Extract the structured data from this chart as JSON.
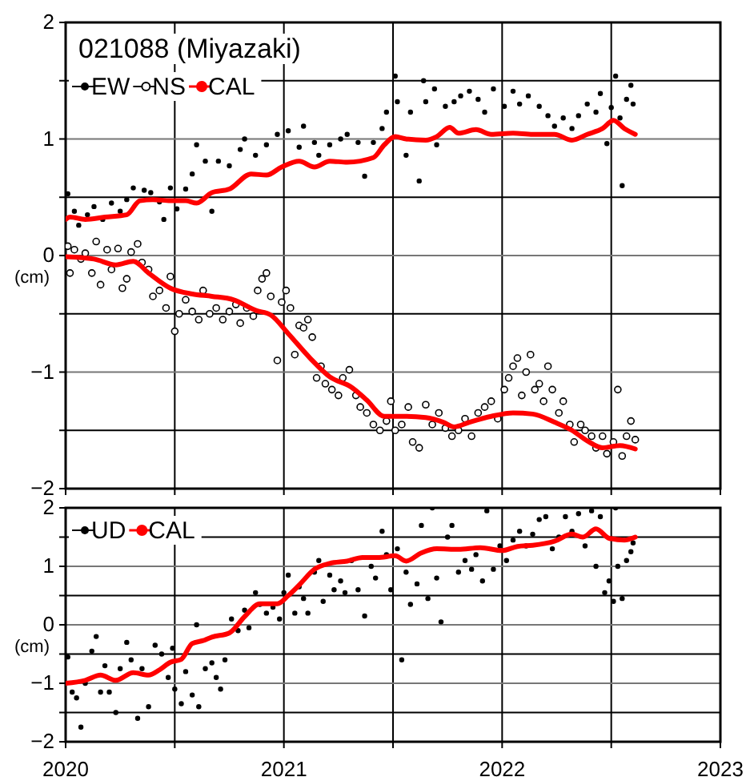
{
  "chart_data": [
    {
      "type": "scatter",
      "title": "021088 (Miyazaki)",
      "ylabel": "(cm)",
      "xlim": [
        2020,
        2023
      ],
      "xticks": [
        {
          "value": 2020,
          "label": null
        },
        {
          "value": 2020.5,
          "label": null
        },
        {
          "value": 2021,
          "label": null
        },
        {
          "value": 2021.5,
          "label": null
        },
        {
          "value": 2022,
          "label": null
        },
        {
          "value": 2022.5,
          "label": null
        },
        {
          "value": 2023,
          "label": null
        }
      ],
      "ylim": [
        -2,
        2
      ],
      "yticks": [
        -2,
        {
          "value": -1.5,
          "label": null
        },
        -1,
        {
          "value": -0.5,
          "label": null
        },
        0,
        {
          "value": 0.5,
          "label": null
        },
        1,
        {
          "value": 1.5,
          "label": null
        },
        2
      ],
      "tick_labels": "y",
      "grid": true,
      "legend": "top left",
      "marker": "circle",
      "series": [
        {
          "name": "EW",
          "color": "#000000",
          "x": [
            2020.01,
            2020.04,
            2020.06,
            2020.1,
            2020.13,
            2020.17,
            2020.21,
            2020.25,
            2020.28,
            2020.31,
            2020.36,
            2020.39,
            2020.43,
            2020.45,
            2020.48,
            2020.51,
            2020.55,
            2020.58,
            2020.6,
            2020.64,
            2020.67,
            2020.7,
            2020.75,
            2020.8,
            2020.82,
            2020.87,
            2020.92,
            2020.97,
            2021.02,
            2021.07,
            2021.09,
            2021.14,
            2021.16,
            2021.21,
            2021.26,
            2021.29,
            2021.34,
            2021.37,
            2021.41,
            2021.45,
            2021.47,
            2021.51,
            2021.52,
            2021.56,
            2021.58,
            2021.62,
            2021.64,
            2021.65,
            2021.69,
            2021.7,
            2021.74,
            2021.78,
            2021.81,
            2021.85,
            2021.89,
            2021.92,
            2021.96,
            2022.01,
            2022.05,
            2022.08,
            2022.12,
            2022.17,
            2022.21,
            2022.24,
            2022.28,
            2022.32,
            2022.35,
            2022.39,
            2022.43,
            2022.45,
            2022.48,
            2022.5,
            2022.52,
            2022.54,
            2022.55,
            2022.57,
            2022.59,
            2022.6
          ],
          "values": [
            0.53,
            0.38,
            0.26,
            0.35,
            0.42,
            0.31,
            0.45,
            0.38,
            0.48,
            0.58,
            0.56,
            0.54,
            0.46,
            0.31,
            0.58,
            0.4,
            0.57,
            0.7,
            0.95,
            0.81,
            0.38,
            0.81,
            0.77,
            0.91,
            1.0,
            0.86,
            0.95,
            1.04,
            1.07,
            0.93,
            1.11,
            0.97,
            0.86,
            0.95,
            1.0,
            1.04,
            0.97,
            0.68,
            0.97,
            1.09,
            1.23,
            1.54,
            1.32,
            0.86,
            1.23,
            0.64,
            1.5,
            1.32,
            1.43,
            0.95,
            1.28,
            1.32,
            1.37,
            1.41,
            1.34,
            1.23,
            1.43,
            1.28,
            1.41,
            1.3,
            1.37,
            1.28,
            1.2,
            1.11,
            1.18,
            1.09,
            1.2,
            1.3,
            1.23,
            1.39,
            0.96,
            1.27,
            1.54,
            1.18,
            0.6,
            1.34,
            1.46,
            1.3
          ]
        },
        {
          "name": "NS",
          "color": "#000000",
          "x": [
            2020.01,
            2020.02,
            2020.04,
            2020.07,
            2020.09,
            2020.12,
            2020.14,
            2020.16,
            2020.19,
            2020.21,
            2020.24,
            2020.26,
            2020.28,
            2020.3,
            2020.33,
            2020.35,
            2020.38,
            2020.4,
            2020.43,
            2020.46,
            2020.48,
            2020.5,
            2020.52,
            2020.55,
            2020.58,
            2020.61,
            2020.63,
            2020.66,
            2020.69,
            2020.72,
            2020.75,
            2020.78,
            2020.8,
            2020.83,
            2020.86,
            2020.88,
            2020.9,
            2020.92,
            2020.94,
            2020.97,
            2020.99,
            2021.01,
            2021.03,
            2021.05,
            2021.07,
            2021.09,
            2021.11,
            2021.13,
            2021.15,
            2021.17,
            2021.19,
            2021.22,
            2021.25,
            2021.27,
            2021.3,
            2021.33,
            2021.35,
            2021.38,
            2021.41,
            2021.44,
            2021.47,
            2021.49,
            2021.51,
            2021.54,
            2021.57,
            2021.59,
            2021.62,
            2021.65,
            2021.68,
            2021.71,
            2021.74,
            2021.77,
            2021.8,
            2021.83,
            2021.86,
            2021.89,
            2021.92,
            2021.95,
            2021.98,
            2022.01,
            2022.03,
            2022.05,
            2022.07,
            2022.09,
            2022.11,
            2022.13,
            2022.15,
            2022.17,
            2022.19,
            2022.21,
            2022.23,
            2022.26,
            2022.28,
            2022.31,
            2022.33,
            2022.36,
            2022.38,
            2022.41,
            2022.43,
            2022.46,
            2022.48,
            2022.51,
            2022.53,
            2022.55,
            2022.57,
            2022.59,
            2022.61
          ],
          "values": [
            0.08,
            -0.15,
            0.05,
            -0.03,
            0.02,
            -0.15,
            0.12,
            -0.25,
            0.05,
            -0.12,
            0.06,
            -0.28,
            -0.2,
            0.03,
            0.1,
            -0.06,
            -0.12,
            -0.35,
            -0.3,
            -0.45,
            -0.18,
            -0.65,
            -0.5,
            -0.38,
            -0.48,
            -0.55,
            -0.3,
            -0.5,
            -0.45,
            -0.55,
            -0.48,
            -0.42,
            -0.58,
            -0.45,
            -0.52,
            -0.3,
            -0.2,
            -0.15,
            -0.35,
            -0.9,
            -0.4,
            -0.3,
            -0.45,
            -0.85,
            -0.6,
            -0.62,
            -0.55,
            -0.7,
            -1.05,
            -0.95,
            -1.1,
            -1.15,
            -1.2,
            -1.05,
            -0.98,
            -1.2,
            -1.3,
            -1.35,
            -1.45,
            -1.5,
            -1.42,
            -1.25,
            -1.5,
            -1.45,
            -1.3,
            -1.6,
            -1.65,
            -1.28,
            -1.45,
            -1.35,
            -1.48,
            -1.55,
            -1.5,
            -1.4,
            -1.55,
            -1.35,
            -1.3,
            -1.25,
            -1.4,
            -1.15,
            -1.05,
            -0.95,
            -0.88,
            -1.2,
            -1.0,
            -0.85,
            -1.15,
            -1.1,
            -1.25,
            -0.95,
            -1.15,
            -1.35,
            -1.25,
            -1.45,
            -1.6,
            -1.45,
            -1.5,
            -1.55,
            -1.65,
            -1.55,
            -1.7,
            -1.6,
            -1.15,
            -1.72,
            -1.55,
            -1.42,
            -1.58
          ]
        },
        {
          "name": "CAL",
          "type": "line",
          "marker": "none",
          "color": "#ff0000",
          "x": [
            2020.0,
            2020.02,
            2020.09,
            2020.18,
            2020.28,
            2020.34,
            2020.4,
            2020.48,
            2020.55,
            2020.6,
            2020.67,
            2020.75,
            2020.85,
            2020.92,
            2020.99,
            2021.07,
            2021.14,
            2021.21,
            2021.29,
            2021.41,
            2021.46,
            2021.51,
            2021.56,
            2021.65,
            2021.7,
            2021.76,
            2021.8,
            2021.88,
            2021.95,
            2022.05,
            2022.14,
            2022.24,
            2022.32,
            2022.39,
            2022.46,
            2022.51,
            2022.56,
            2022.61
          ],
          "values": [
            0.31,
            0.33,
            0.31,
            0.33,
            0.35,
            0.47,
            0.48,
            0.47,
            0.47,
            0.45,
            0.54,
            0.57,
            0.7,
            0.69,
            0.76,
            0.81,
            0.76,
            0.81,
            0.8,
            0.84,
            0.95,
            1.02,
            1.0,
            0.99,
            1.02,
            1.1,
            1.05,
            1.08,
            1.04,
            1.05,
            1.04,
            1.04,
            0.99,
            1.04,
            1.09,
            1.16,
            1.09,
            1.04
          ]
        },
        {
          "type": "line",
          "marker": "none",
          "color": "#ff0000",
          "x": [
            2020.0,
            2020.13,
            2020.23,
            2020.31,
            2020.38,
            2020.48,
            2020.58,
            2020.67,
            2020.77,
            2020.87,
            2020.94,
            2021.02,
            2021.12,
            2021.21,
            2021.31,
            2021.38,
            2021.46,
            2021.56,
            2021.65,
            2021.73,
            2021.78,
            2021.85,
            2021.95,
            2022.05,
            2022.14,
            2022.24,
            2022.32,
            2022.39,
            2022.46,
            2022.54,
            2022.61
          ],
          "values": [
            -0.01,
            -0.03,
            -0.08,
            -0.05,
            -0.15,
            -0.28,
            -0.33,
            -0.35,
            -0.38,
            -0.47,
            -0.51,
            -0.67,
            -0.88,
            -1.04,
            -1.13,
            -1.24,
            -1.38,
            -1.38,
            -1.39,
            -1.43,
            -1.47,
            -1.43,
            -1.38,
            -1.35,
            -1.36,
            -1.43,
            -1.5,
            -1.59,
            -1.65,
            -1.63,
            -1.66
          ]
        }
      ]
    },
    {
      "type": "scatter",
      "ylabel": "(cm)",
      "xlim": [
        2020,
        2023
      ],
      "xticks": [
        2020,
        {
          "value": 2020.5,
          "label": null
        },
        2021,
        {
          "value": 2021.5,
          "label": null
        },
        2022,
        {
          "value": 2022.5,
          "label": null
        },
        2023
      ],
      "ylim": [
        -2,
        2
      ],
      "yticks": [
        -2,
        {
          "value": -1.5,
          "label": null
        },
        -1,
        {
          "value": -0.5,
          "label": null
        },
        0,
        {
          "value": 0.5,
          "label": null
        },
        1,
        {
          "value": 1.5,
          "label": null
        },
        2
      ],
      "grid": true,
      "legend": "top left",
      "marker": "circle",
      "series": [
        {
          "name": "UD",
          "color": "#000000",
          "x": [
            2020.01,
            2020.03,
            2020.05,
            2020.07,
            2020.09,
            2020.12,
            2020.14,
            2020.16,
            2020.18,
            2020.2,
            2020.23,
            2020.25,
            2020.28,
            2020.3,
            2020.33,
            2020.35,
            2020.38,
            2020.41,
            2020.44,
            2020.47,
            2020.49,
            2020.5,
            2020.53,
            2020.55,
            2020.58,
            2020.6,
            2020.61,
            2020.64,
            2020.67,
            2020.69,
            2020.71,
            2020.73,
            2020.76,
            2020.79,
            2020.82,
            2020.84,
            2020.87,
            2020.89,
            2020.92,
            2020.95,
            2020.98,
            2021.0,
            2021.02,
            2021.05,
            2021.07,
            2021.09,
            2021.11,
            2021.14,
            2021.16,
            2021.18,
            2021.21,
            2021.23,
            2021.26,
            2021.28,
            2021.31,
            2021.34,
            2021.37,
            2021.4,
            2021.42,
            2021.45,
            2021.47,
            2021.49,
            2021.52,
            2021.54,
            2021.56,
            2021.58,
            2021.61,
            2021.63,
            2021.66,
            2021.68,
            2021.7,
            2021.72,
            2021.75,
            2021.77,
            2021.8,
            2021.83,
            2021.86,
            2021.88,
            2021.91,
            2021.93,
            2021.96,
            2021.99,
            2022.02,
            2022.05,
            2022.08,
            2022.11,
            2022.14,
            2022.17,
            2022.2,
            2022.23,
            2022.26,
            2022.29,
            2022.32,
            2022.35,
            2022.38,
            2022.41,
            2022.43,
            2022.45,
            2022.47,
            2022.49,
            2022.51,
            2022.52,
            2022.53,
            2022.55,
            2022.57,
            2022.59,
            2022.6
          ],
          "values": [
            -0.55,
            -1.15,
            -1.25,
            -1.75,
            -1.0,
            -0.45,
            -0.2,
            -1.15,
            -0.7,
            -1.15,
            -1.5,
            -0.75,
            -0.3,
            -0.6,
            -1.6,
            -0.75,
            -1.4,
            -0.35,
            -0.5,
            -0.9,
            -0.4,
            -1.1,
            -1.35,
            -0.8,
            -1.2,
            0.0,
            -1.4,
            -0.75,
            -0.65,
            -0.9,
            -1.1,
            -0.6,
            0.1,
            -0.1,
            0.25,
            -0.05,
            0.55,
            0.35,
            0.2,
            0.3,
            0.1,
            0.55,
            0.85,
            0.2,
            0.65,
            0.45,
            0.2,
            0.9,
            1.1,
            0.4,
            0.85,
            0.6,
            0.75,
            0.55,
            1.1,
            0.6,
            0.15,
            1.0,
            0.8,
            1.6,
            1.2,
            0.6,
            1.3,
            -0.6,
            0.9,
            0.35,
            0.7,
            1.7,
            0.45,
            2.0,
            0.8,
            0.05,
            1.5,
            1.7,
            0.9,
            1.1,
            0.95,
            1.2,
            0.75,
            1.95,
            0.95,
            1.35,
            1.1,
            1.45,
            1.6,
            1.35,
            1.55,
            1.8,
            1.85,
            1.3,
            1.5,
            1.85,
            1.6,
            1.9,
            1.35,
            1.95,
            1.0,
            1.85,
            0.55,
            0.75,
            0.4,
            2.0,
            1.0,
            0.45,
            1.1,
            1.25,
            1.4
          ]
        },
        {
          "name": "CAL",
          "type": "line",
          "marker": "none",
          "color": "#ff0000",
          "x": [
            2020.0,
            2020.09,
            2020.16,
            2020.23,
            2020.31,
            2020.38,
            2020.43,
            2020.48,
            2020.53,
            2020.58,
            2020.63,
            2020.67,
            2020.75,
            2020.82,
            2020.89,
            2020.97,
            2021.02,
            2021.07,
            2021.14,
            2021.21,
            2021.29,
            2021.36,
            2021.43,
            2021.51,
            2021.56,
            2021.63,
            2021.7,
            2021.8,
            2021.9,
            2022.0,
            2022.07,
            2022.14,
            2022.24,
            2022.32,
            2022.37,
            2022.43,
            2022.49,
            2022.56,
            2022.61
          ],
          "values": [
            -1.0,
            -0.95,
            -0.86,
            -0.95,
            -0.82,
            -0.86,
            -0.77,
            -0.64,
            -0.59,
            -0.32,
            -0.27,
            -0.21,
            -0.14,
            0.14,
            0.36,
            0.36,
            0.5,
            0.68,
            0.95,
            1.05,
            1.09,
            1.15,
            1.15,
            1.18,
            1.09,
            1.23,
            1.3,
            1.29,
            1.32,
            1.27,
            1.34,
            1.36,
            1.43,
            1.55,
            1.5,
            1.64,
            1.48,
            1.45,
            1.5
          ]
        }
      ]
    }
  ]
}
